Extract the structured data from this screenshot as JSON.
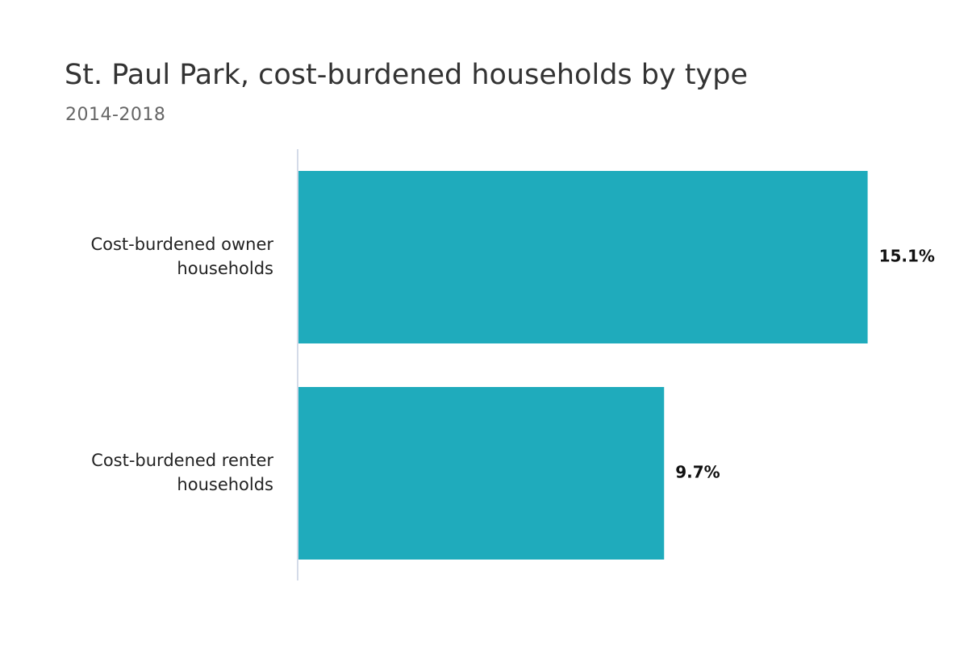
{
  "chart_data": {
    "type": "bar",
    "orientation": "horizontal",
    "title": "St. Paul Park, cost-burdened households by type",
    "subtitle": "2014-2018",
    "categories": [
      [
        "Cost-burdened owner",
        "households"
      ],
      [
        "Cost-burdened renter",
        "households"
      ]
    ],
    "values": [
      15.1,
      9.7
    ],
    "value_labels": [
      "15.1%",
      "9.7%"
    ],
    "xlim": [
      0,
      16.5
    ],
    "grid": false,
    "legend": "none",
    "colors": {
      "bar": "#1fabbc",
      "axis": "#c5cfe0"
    }
  }
}
